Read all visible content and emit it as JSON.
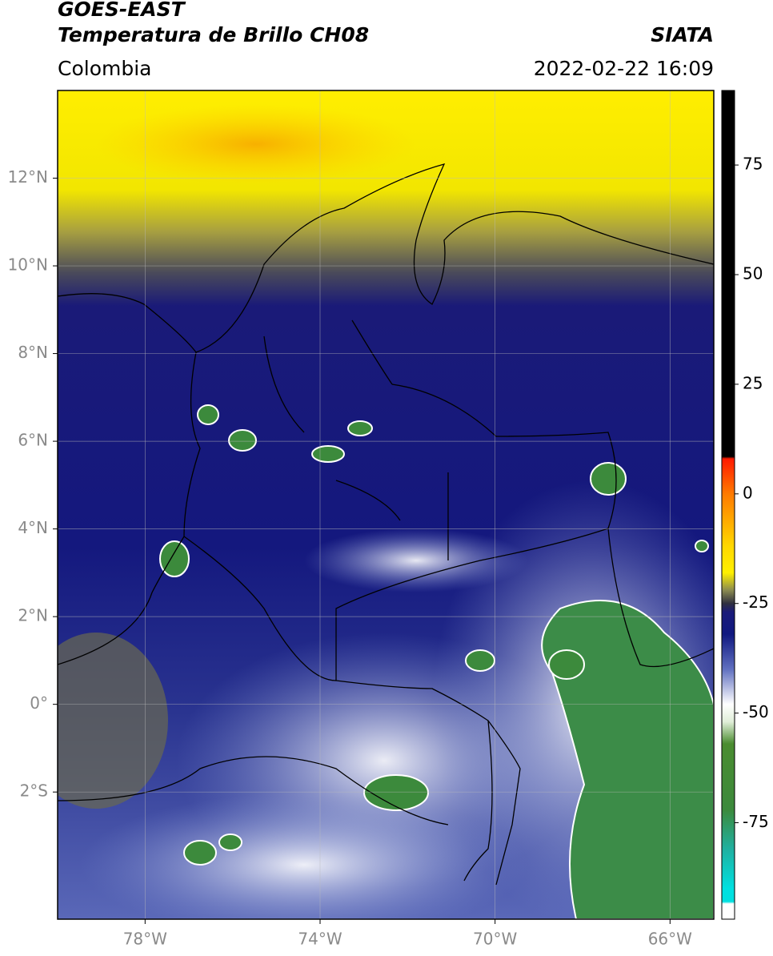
{
  "header": {
    "title": "GOES-EAST",
    "subtitle": "Temperatura de Brillo CH08",
    "source": "SIATA",
    "region": "Colombia",
    "datetime": "2022-02-22 16:09"
  },
  "map": {
    "xlim": [
      -80,
      -65
    ],
    "ylim": [
      -4.9,
      14
    ],
    "grid": true,
    "xticks": [
      {
        "value": -78,
        "label": "78°W"
      },
      {
        "value": -74,
        "label": "74°W"
      },
      {
        "value": -70,
        "label": "70°W"
      },
      {
        "value": -66,
        "label": "66°W"
      }
    ],
    "yticks": [
      {
        "value": 12,
        "label": "12°N"
      },
      {
        "value": 10,
        "label": "10°N"
      },
      {
        "value": 8,
        "label": "8°N"
      },
      {
        "value": 6,
        "label": "6°N"
      },
      {
        "value": 4,
        "label": "4°N"
      },
      {
        "value": 2,
        "label": "2°N"
      },
      {
        "value": 0,
        "label": "0°"
      },
      {
        "value": -2,
        "label": "2°S"
      }
    ]
  },
  "colorbar": {
    "clim": [
      -97,
      92
    ],
    "ticks": [
      75,
      50,
      25,
      0,
      -25,
      -50,
      -75
    ],
    "colormap": [
      {
        "value": 92,
        "color": "#000000"
      },
      {
        "value": 8.5,
        "color": "#000000"
      },
      {
        "value": 8,
        "color": "#ff1a00"
      },
      {
        "value": 0,
        "color": "#ff7a00"
      },
      {
        "value": -12,
        "color": "#ffd800"
      },
      {
        "value": -18,
        "color": "#fff000"
      },
      {
        "value": -22,
        "color": "#8a8a50"
      },
      {
        "value": -25,
        "color": "#303040"
      },
      {
        "value": -27,
        "color": "#1a1a7a"
      },
      {
        "value": -32,
        "color": "#101880"
      },
      {
        "value": -40,
        "color": "#6070c0"
      },
      {
        "value": -48,
        "color": "#ffffff"
      },
      {
        "value": -52,
        "color": "#e0eed8"
      },
      {
        "value": -57,
        "color": "#4a8c30"
      },
      {
        "value": -72,
        "color": "#3c8a3c"
      },
      {
        "value": -81,
        "color": "#20b0a0"
      },
      {
        "value": -90,
        "color": "#00e0e0"
      },
      {
        "value": -93,
        "color": "#00e0e0"
      },
      {
        "value": -93.5,
        "color": "#ffffff"
      },
      {
        "value": -97,
        "color": "#ffffff"
      }
    ]
  }
}
